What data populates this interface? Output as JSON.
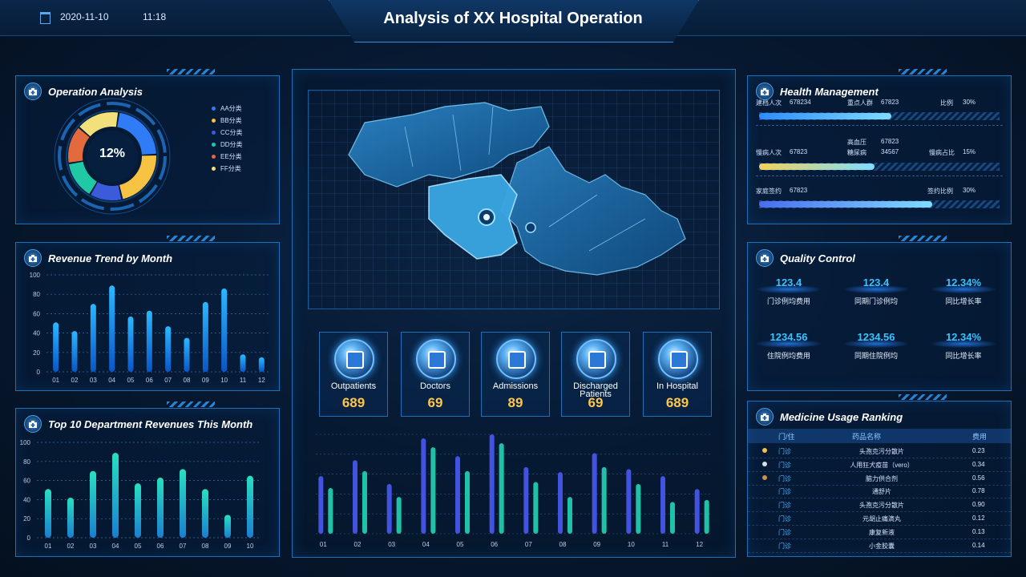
{
  "header": {
    "date": "2020-11-10",
    "time": "11:18",
    "title": "Analysis of XX Hospital Operation"
  },
  "operation": {
    "title": "Operation Analysis",
    "center_value": "12%",
    "legend": [
      {
        "label": "AA分类",
        "color": "#2f7cf6"
      },
      {
        "label": "BB分类",
        "color": "#f6c342"
      },
      {
        "label": "CC分类",
        "color": "#3b5bdb"
      },
      {
        "label": "DD分类",
        "color": "#20c9a6"
      },
      {
        "label": "EE分类",
        "color": "#e36a3c"
      },
      {
        "label": "FF分类",
        "color": "#f2e07a"
      }
    ]
  },
  "revenue_panel": {
    "title": "Revenue Trend by Month"
  },
  "dept_panel": {
    "title": "Top 10 Department Revenues This Month"
  },
  "health": {
    "title": "Health Management",
    "rows": [
      {
        "a_label": "建档人次",
        "a_value": "678234",
        "b_label": "重点人群",
        "b_value": "67823",
        "c_label": "比例",
        "c_value": "30%",
        "fill": 0.55,
        "color": "#2b8cff"
      },
      {
        "a_label": "慢病人次",
        "a_value": "67823",
        "b_label": "高血压",
        "b_value": "67823",
        "b2_label": "糖尿病",
        "b2_value": "34567",
        "c_label": "慢病占比",
        "c_value": "15%",
        "fill": 0.48,
        "color": "#f2d25a"
      },
      {
        "a_label": "家庭签约",
        "a_value": "67823",
        "c_label": "签约比例",
        "c_value": "30%",
        "fill": 0.72,
        "color": "#4a6cf0"
      }
    ]
  },
  "quality": {
    "title": "Quality Control",
    "items": [
      {
        "value": "123.4",
        "label": "门诊例均费用"
      },
      {
        "value": "123.4",
        "label": "同期门诊例均"
      },
      {
        "value": "12.34%",
        "label": "同比增长率"
      },
      {
        "value": "1234.56",
        "label": "住院例均费用"
      },
      {
        "value": "1234.56",
        "label": "同期住院例均"
      },
      {
        "value": "12.34%",
        "label": "同比增长率"
      }
    ]
  },
  "medicine": {
    "title": "Medicine Usage Ranking",
    "headers": [
      "门/住",
      "药品名称",
      "费用"
    ],
    "rows": [
      {
        "type": "门诊",
        "name": "头孢克污分散片",
        "cost": "0.23"
      },
      {
        "type": "门诊",
        "name": "人用狂犬疫苗（vero）",
        "cost": "0.34"
      },
      {
        "type": "门诊",
        "name": "脑力供合剂",
        "cost": "0.56"
      },
      {
        "type": "门诊",
        "name": "通舒片",
        "cost": "0.78"
      },
      {
        "type": "门诊",
        "name": "头孢克污分散片",
        "cost": "0.90"
      },
      {
        "type": "门诊",
        "name": "元胡止痛滴丸",
        "cost": "0.12"
      },
      {
        "type": "门诊",
        "name": "康复新液",
        "cost": "0.13"
      },
      {
        "type": "门诊",
        "name": "小金胶囊",
        "cost": "0.14"
      }
    ]
  },
  "kpis": [
    {
      "label": "Outpatients",
      "value": "689"
    },
    {
      "label": "Doctors",
      "value": "69"
    },
    {
      "label": "Admissions",
      "value": "89"
    },
    {
      "label": "Discharged Patients",
      "value": "69"
    },
    {
      "label": "In Hospital",
      "value": "689"
    }
  ],
  "chart_data": [
    {
      "type": "pie",
      "title": "Operation Analysis",
      "categories": [
        "AA分类",
        "BB分类",
        "CC分类",
        "DD分类",
        "EE分类",
        "FF分类"
      ],
      "values": [
        22,
        22,
        12,
        14,
        14,
        16
      ]
    },
    {
      "type": "bar",
      "title": "Revenue Trend by Month",
      "categories": [
        "01",
        "02",
        "03",
        "04",
        "05",
        "06",
        "07",
        "08",
        "09",
        "10",
        "11",
        "12"
      ],
      "values": [
        51,
        42,
        70,
        89,
        57,
        63,
        47,
        35,
        72,
        86,
        18,
        15
      ],
      "ylim": [
        0,
        100
      ],
      "yticks": [
        0,
        20,
        40,
        60,
        80,
        100
      ],
      "grid": true
    },
    {
      "type": "bar",
      "title": "Top 10 Department Revenues This Month",
      "categories": [
        "01",
        "02",
        "03",
        "04",
        "05",
        "06",
        "07",
        "08",
        "09",
        "10"
      ],
      "values": [
        51,
        42,
        70,
        89,
        57,
        63,
        72,
        51,
        24,
        65
      ],
      "ylim": [
        0,
        100
      ],
      "yticks": [
        0,
        20,
        40,
        60,
        80,
        100
      ],
      "grid": true
    },
    {
      "type": "bar",
      "categories": [
        "01",
        "02",
        "03",
        "04",
        "05",
        "06",
        "07",
        "08",
        "09",
        "10",
        "11",
        "12"
      ],
      "series": [
        {
          "values": [
            58,
            74,
            50,
            96,
            78,
            100,
            67,
            62,
            81,
            65,
            58,
            45
          ],
          "color": "#4452e0"
        },
        {
          "values": [
            46,
            63,
            37,
            87,
            63,
            91,
            52,
            37,
            67,
            50,
            32,
            34
          ],
          "color": "#1fc2a6"
        }
      ],
      "ylim": [
        0,
        100
      ],
      "grid": true
    }
  ]
}
